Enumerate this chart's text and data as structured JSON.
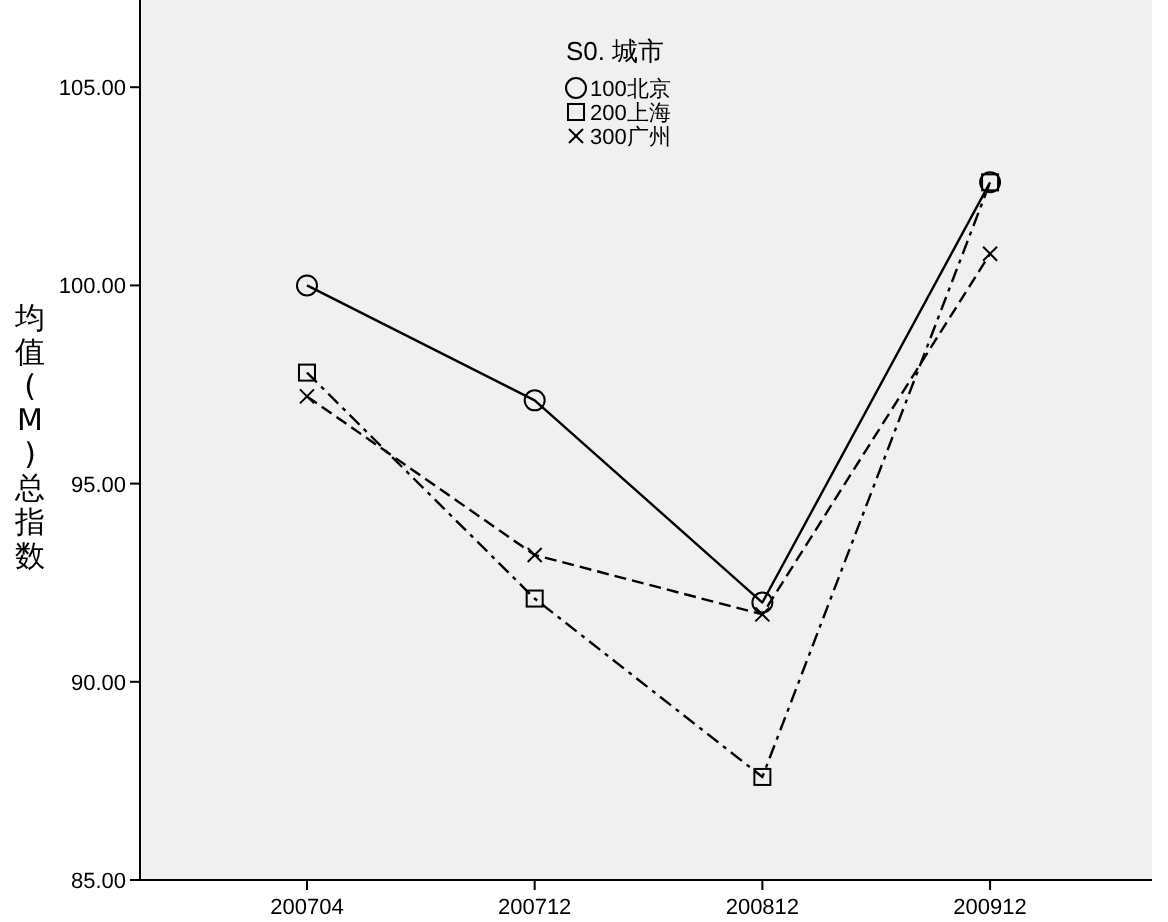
{
  "chart_data": {
    "type": "line",
    "ylabel": "均值(M)总指数",
    "legend_title": "S0. 城市",
    "legend": "top",
    "categories": [
      "200704",
      "200712",
      "200812",
      "200912"
    ],
    "ylim": [
      85,
      107.2
    ],
    "yticks": [
      {
        "value": 85,
        "label": "85.00"
      },
      {
        "value": 90,
        "label": "90.00"
      },
      {
        "value": 95,
        "label": "95.00"
      },
      {
        "value": 100,
        "label": "100.00"
      },
      {
        "value": 105,
        "label": "105.00"
      }
    ],
    "series": [
      {
        "name": "100北京",
        "color": "#000000",
        "marker": "circle",
        "line_style": "solid",
        "values": [
          100.0,
          97.1,
          92.0,
          102.6
        ]
      },
      {
        "name": "200上海",
        "color": "#000000",
        "marker": "square",
        "line_style": "dashdot",
        "values": [
          97.8,
          92.1,
          87.6,
          102.6
        ]
      },
      {
        "name": "300广州",
        "color": "#000000",
        "marker": "cross",
        "line_style": "dashed",
        "values": [
          97.2,
          93.2,
          91.7,
          100.8
        ]
      }
    ]
  }
}
